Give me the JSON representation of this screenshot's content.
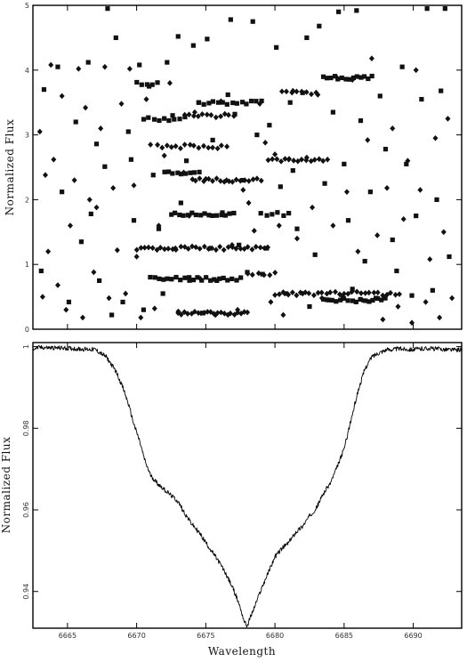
{
  "chart_data": [
    {
      "type": "scatter",
      "title": "",
      "xlabel": "",
      "ylabel": "Normalized Flux",
      "xlim": [
        6662.5,
        6693.5
      ],
      "ylim": [
        0,
        5
      ],
      "yticks": [
        0,
        1,
        2,
        3,
        4,
        5
      ],
      "ytick_labels": [
        "0",
        "1",
        "2",
        "3",
        "4",
        "5"
      ],
      "grid": false,
      "legend": "none",
      "marker_styles": [
        "square",
        "diamond"
      ],
      "series": [
        {
          "marker": "square",
          "points": [
            [
              6663.3,
              3.7
            ],
            [
              6663.1,
              0.9
            ],
            [
              6664.3,
              4.05
            ],
            [
              6664.6,
              2.12
            ],
            [
              6665.1,
              0.42
            ],
            [
              6665.6,
              3.2
            ],
            [
              6666.0,
              1.35
            ],
            [
              6666.5,
              4.12
            ],
            [
              6666.7,
              1.78
            ],
            [
              6667.1,
              2.86
            ],
            [
              6667.3,
              0.75
            ],
            [
              6667.7,
              2.51
            ],
            [
              6667.9,
              4.95
            ],
            [
              6668.2,
              0.22
            ],
            [
              6668.5,
              4.5
            ],
            [
              6669.0,
              0.42
            ],
            [
              6669.4,
              3.05
            ],
            [
              6669.6,
              2.62
            ],
            [
              6669.8,
              1.68
            ],
            [
              6670.2,
              4.08
            ],
            [
              6670.5,
              0.3
            ],
            [
              6670.9,
              3.75
            ],
            [
              6671.2,
              2.38
            ],
            [
              6671.6,
              1.55
            ],
            [
              6671.9,
              0.55
            ],
            [
              6672.2,
              4.12
            ],
            [
              6672.6,
              3.3
            ],
            [
              6673.0,
              4.52
            ],
            [
              6673.2,
              1.95
            ],
            [
              6673.6,
              2.6
            ],
            [
              6673.8,
              0.8
            ],
            [
              6674.1,
              4.38
            ],
            [
              6674.5,
              3.5
            ],
            [
              6674.8,
              0.25
            ],
            [
              6675.1,
              4.48
            ],
            [
              6675.5,
              2.92
            ],
            [
              6675.8,
              0.75
            ],
            [
              6676.2,
              1.8
            ],
            [
              6676.6,
              3.62
            ],
            [
              6676.8,
              4.78
            ],
            [
              6677.1,
              3.32
            ],
            [
              6677.4,
              1.3
            ],
            [
              6677.7,
              2.3
            ],
            [
              6678.0,
              0.88
            ],
            [
              6678.4,
              4.75
            ],
            [
              6678.7,
              3.0
            ],
            [
              6679.1,
              0.85
            ],
            [
              6679.4,
              1.25
            ],
            [
              6679.6,
              3.15
            ],
            [
              6680.1,
              4.35
            ],
            [
              6680.4,
              2.2
            ],
            [
              6680.8,
              0.55
            ],
            [
              6681.1,
              3.5
            ],
            [
              6681.3,
              2.45
            ],
            [
              6681.6,
              1.55
            ],
            [
              6682.0,
              3.65
            ],
            [
              6682.3,
              4.5
            ],
            [
              6682.5,
              0.35
            ],
            [
              6682.9,
              1.15
            ],
            [
              6683.2,
              4.68
            ],
            [
              6683.6,
              2.25
            ],
            [
              6683.9,
              0.45
            ],
            [
              6684.2,
              3.35
            ],
            [
              6684.6,
              4.9
            ],
            [
              6685.0,
              2.55
            ],
            [
              6685.3,
              1.68
            ],
            [
              6685.6,
              0.62
            ],
            [
              6685.9,
              4.92
            ],
            [
              6686.2,
              3.22
            ],
            [
              6686.5,
              1.05
            ],
            [
              6686.9,
              2.12
            ],
            [
              6687.3,
              0.48
            ],
            [
              6687.6,
              3.6
            ],
            [
              6688.0,
              2.78
            ],
            [
              6688.5,
              1.38
            ],
            [
              6688.8,
              0.9
            ],
            [
              6689.2,
              4.05
            ],
            [
              6689.5,
              2.55
            ],
            [
              6689.9,
              0.52
            ],
            [
              6690.2,
              1.75
            ],
            [
              6690.6,
              3.55
            ],
            [
              6691.0,
              4.95
            ],
            [
              6691.4,
              0.6
            ],
            [
              6691.7,
              2.0
            ],
            [
              6692.0,
              3.68
            ],
            [
              6692.3,
              4.95
            ],
            [
              6692.6,
              1.12
            ]
          ]
        },
        {
          "marker": "diamond",
          "points": [
            [
              6663.0,
              3.05
            ],
            [
              6663.2,
              0.5
            ],
            [
              6663.4,
              2.38
            ],
            [
              6663.6,
              1.2
            ],
            [
              6663.8,
              4.08
            ],
            [
              6664.0,
              2.62
            ],
            [
              6664.3,
              0.68
            ],
            [
              6664.6,
              3.6
            ],
            [
              6664.9,
              0.3
            ],
            [
              6665.2,
              1.6
            ],
            [
              6665.5,
              2.3
            ],
            [
              6665.8,
              4.02
            ],
            [
              6666.1,
              0.18
            ],
            [
              6666.3,
              3.42
            ],
            [
              6666.6,
              2.0
            ],
            [
              6666.9,
              0.88
            ],
            [
              6667.1,
              1.88
            ],
            [
              6667.4,
              3.1
            ],
            [
              6667.7,
              4.05
            ],
            [
              6668.0,
              0.48
            ],
            [
              6668.3,
              2.18
            ],
            [
              6668.6,
              1.22
            ],
            [
              6668.9,
              3.48
            ],
            [
              6669.2,
              0.55
            ],
            [
              6669.5,
              4.02
            ],
            [
              6669.8,
              2.22
            ],
            [
              6670.0,
              1.12
            ],
            [
              6670.3,
              0.18
            ],
            [
              6670.7,
              3.55
            ],
            [
              6671.0,
              2.85
            ],
            [
              6671.3,
              0.32
            ],
            [
              6671.6,
              1.6
            ],
            [
              6672.0,
              2.68
            ],
            [
              6672.4,
              3.8
            ],
            [
              6672.8,
              1.25
            ],
            [
              6673.0,
              0.25
            ],
            [
              6673.4,
              2.42
            ],
            [
              6673.8,
              1.75
            ],
            [
              6674.2,
              3.35
            ],
            [
              6674.6,
              0.78
            ],
            [
              6675.0,
              2.32
            ],
            [
              6675.3,
              1.25
            ],
            [
              6675.7,
              0.22
            ],
            [
              6676.1,
              3.52
            ],
            [
              6676.5,
              2.3
            ],
            [
              6676.9,
              1.3
            ],
            [
              6677.3,
              0.3
            ],
            [
              6677.7,
              2.15
            ],
            [
              6678.1,
              1.95
            ],
            [
              6678.5,
              1.52
            ],
            [
              6678.9,
              3.48
            ],
            [
              6679.3,
              2.88
            ],
            [
              6679.7,
              0.42
            ],
            [
              6680.0,
              2.7
            ],
            [
              6680.3,
              1.6
            ],
            [
              6680.6,
              0.22
            ],
            [
              6681.0,
              2.62
            ],
            [
              6681.3,
              3.68
            ],
            [
              6681.6,
              1.4
            ],
            [
              6682.0,
              0.55
            ],
            [
              6682.3,
              2.65
            ],
            [
              6682.7,
              1.88
            ],
            [
              6683.1,
              3.62
            ],
            [
              6683.4,
              0.48
            ],
            [
              6683.8,
              2.62
            ],
            [
              6684.2,
              1.6
            ],
            [
              6684.5,
              3.88
            ],
            [
              6684.9,
              0.5
            ],
            [
              6685.2,
              2.12
            ],
            [
              6685.6,
              3.85
            ],
            [
              6686.0,
              1.2
            ],
            [
              6686.3,
              0.45
            ],
            [
              6686.7,
              2.92
            ],
            [
              6687.0,
              4.18
            ],
            [
              6687.4,
              1.45
            ],
            [
              6687.8,
              0.15
            ],
            [
              6688.1,
              2.18
            ],
            [
              6688.5,
              3.1
            ],
            [
              6688.9,
              0.35
            ],
            [
              6689.3,
              1.7
            ],
            [
              6689.6,
              2.6
            ],
            [
              6689.9,
              0.1
            ],
            [
              6690.2,
              4.0
            ],
            [
              6690.5,
              2.15
            ],
            [
              6690.9,
              0.42
            ],
            [
              6691.2,
              1.08
            ],
            [
              6691.6,
              2.95
            ],
            [
              6691.9,
              0.18
            ],
            [
              6692.2,
              1.5
            ],
            [
              6692.5,
              3.25
            ],
            [
              6692.8,
              0.48
            ]
          ]
        }
      ],
      "bands": [
        {
          "marker": "diamond",
          "y": 0.25,
          "x_from": 6673.0,
          "x_to": 6678.0,
          "n": 22
        },
        {
          "marker": "square",
          "y": 0.78,
          "x_from": 6671.0,
          "x_to": 6677.5,
          "n": 22
        },
        {
          "marker": "diamond",
          "y": 1.25,
          "x_from": 6670.0,
          "x_to": 6679.5,
          "n": 34
        },
        {
          "marker": "square",
          "y": 1.78,
          "x_from": 6672.5,
          "x_to": 6677.0,
          "n": 16
        },
        {
          "marker": "diamond",
          "y": 2.3,
          "x_from": 6674.0,
          "x_to": 6679.0,
          "n": 18
        },
        {
          "marker": "square",
          "y": 2.42,
          "x_from": 6672.0,
          "x_to": 6674.5,
          "n": 9
        },
        {
          "marker": "diamond",
          "y": 2.82,
          "x_from": 6671.5,
          "x_to": 6676.5,
          "n": 16
        },
        {
          "marker": "square",
          "y": 3.25,
          "x_from": 6670.5,
          "x_to": 6673.5,
          "n": 9
        },
        {
          "marker": "diamond",
          "y": 3.3,
          "x_from": 6673.5,
          "x_to": 6677.0,
          "n": 12
        },
        {
          "marker": "square",
          "y": 3.5,
          "x_from": 6674.5,
          "x_to": 6679.0,
          "n": 14
        },
        {
          "marker": "square",
          "y": 3.8,
          "x_from": 6670.0,
          "x_to": 6671.5,
          "n": 5
        },
        {
          "marker": "diamond",
          "y": 0.55,
          "x_from": 6680.0,
          "x_to": 6689.0,
          "n": 30
        },
        {
          "marker": "square",
          "y": 0.45,
          "x_from": 6683.5,
          "x_to": 6688.0,
          "n": 16
        },
        {
          "marker": "diamond",
          "y": 2.62,
          "x_from": 6679.5,
          "x_to": 6683.5,
          "n": 14
        },
        {
          "marker": "square",
          "y": 3.88,
          "x_from": 6683.5,
          "x_to": 6687.0,
          "n": 14
        },
        {
          "marker": "diamond",
          "y": 3.65,
          "x_from": 6680.5,
          "x_to": 6683.0,
          "n": 8
        },
        {
          "marker": "square",
          "y": 1.78,
          "x_from": 6679.0,
          "x_to": 6681.0,
          "n": 6
        },
        {
          "marker": "diamond",
          "y": 0.85,
          "x_from": 6678.0,
          "x_to": 6680.0,
          "n": 6
        }
      ]
    },
    {
      "type": "line",
      "title": "",
      "xlabel": "Wavelength",
      "ylabel": "Normalized Flux",
      "xlim": [
        6662.5,
        6693.5
      ],
      "ylim": [
        0.931,
        1.001
      ],
      "xticks": [
        6665,
        6670,
        6675,
        6680,
        6685,
        6690
      ],
      "xtick_labels": [
        "6665",
        "6670",
        "6675",
        "6680",
        "6685",
        "6690"
      ],
      "yticks": [
        0.94,
        0.96,
        0.98,
        1
      ],
      "ytick_labels": [
        "0.94",
        "0.96",
        "0.98",
        "1"
      ],
      "grid": false,
      "legend": "none",
      "series": [
        {
          "x": [
            6662.5,
            6663.0,
            6664.0,
            6665.0,
            6666.0,
            6667.0,
            6667.8,
            6668.5,
            6669.0,
            6669.4,
            6669.8,
            6670.2,
            6670.6,
            6671.0,
            6671.5,
            6672.0,
            6672.5,
            6673.0,
            6673.5,
            6674.0,
            6674.5,
            6675.0,
            6675.5,
            6676.0,
            6676.5,
            6677.0,
            6677.4,
            6677.8,
            6678.0,
            6678.2,
            6678.5,
            6679.0,
            6679.5,
            6680.0,
            6680.5,
            6681.0,
            6681.5,
            6682.0,
            6682.5,
            6683.0,
            6683.5,
            6684.0,
            6684.5,
            6685.0,
            6685.5,
            6686.0,
            6686.5,
            6687.0,
            6687.5,
            6688.0,
            6689.0,
            6690.0,
            6691.0,
            6692.0,
            6693.0,
            6693.5
          ],
          "y": [
            0.9995,
            0.9998,
            0.9997,
            0.9996,
            0.9994,
            0.9993,
            0.9975,
            0.994,
            0.99,
            0.986,
            0.981,
            0.977,
            0.972,
            0.9685,
            0.9665,
            0.965,
            0.9635,
            0.962,
            0.959,
            0.9565,
            0.9545,
            0.952,
            0.9495,
            0.947,
            0.944,
            0.9405,
            0.937,
            0.9325,
            0.9315,
            0.9335,
            0.936,
            0.9405,
            0.9445,
            0.9485,
            0.9505,
            0.952,
            0.9545,
            0.956,
            0.9585,
            0.9605,
            0.964,
            0.9665,
            0.9705,
            0.975,
            0.982,
            0.989,
            0.9945,
            0.9975,
            0.9985,
            0.9992,
            0.9995,
            0.9993,
            0.9996,
            0.9994,
            0.9992,
            0.9993
          ]
        }
      ]
    }
  ]
}
